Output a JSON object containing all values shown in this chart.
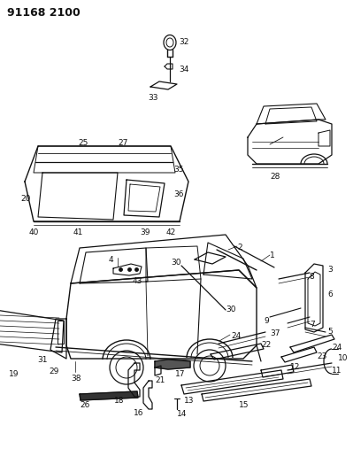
{
  "title": "91168 2100",
  "bg": "#ffffff",
  "lc": "#111111",
  "title_fs": 9,
  "dpi": 100,
  "fig_w": 3.99,
  "fig_h": 5.33
}
